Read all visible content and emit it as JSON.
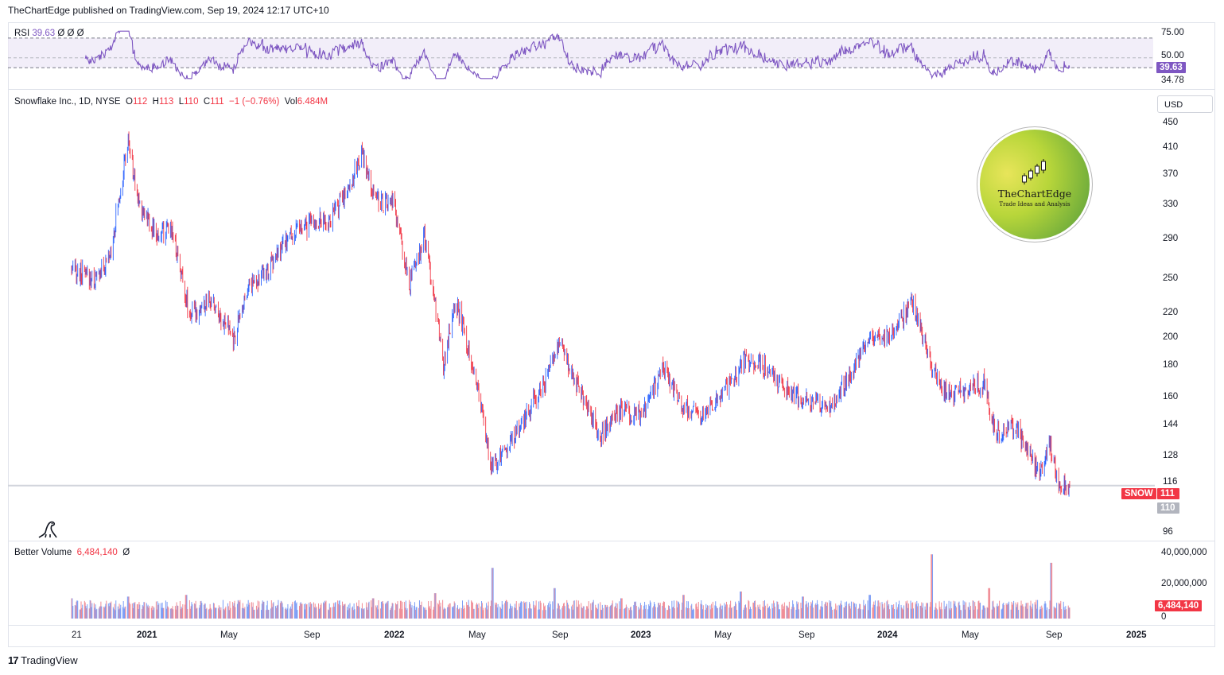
{
  "header": {
    "publisher_line": "TheChartEdge published on TradingView.com, Sep 19, 2024 12:17 UTC+10"
  },
  "rsi_pane": {
    "name": "RSI",
    "value": "39.63",
    "flags": [
      "Ø",
      "Ø",
      "Ø"
    ],
    "axis_labels": [
      "75.00",
      "50.00",
      "34.78"
    ],
    "current_tag": "39.63",
    "band": [
      40,
      70
    ],
    "range": [
      28,
      78
    ],
    "line_color": "#7e57c2",
    "band_color": "#ede7f6"
  },
  "price_pane": {
    "symbol_line": "Snowflake Inc., 1D, NYSE",
    "ohlc": {
      "o_label": "O",
      "o": "112",
      "h_label": "H",
      "h": "113",
      "l_label": "L",
      "l": "110",
      "c_label": "C",
      "c": "111",
      "change": "−1 (−0.76%)",
      "vol_label": "Vol",
      "vol": "6.484M"
    },
    "currency": "USD",
    "axis_labels": [
      "450",
      "410",
      "370",
      "330",
      "290",
      "250",
      "220",
      "200",
      "180",
      "160",
      "144",
      "128",
      "116",
      "96"
    ],
    "symbol_tag": "SNOW",
    "last_price_tag": "111",
    "low_price_tag": "110",
    "scale": "log",
    "up_color": "#2962ff",
    "down_color": "#f23645"
  },
  "watermark": {
    "title": "TheChartEdge",
    "subtitle": "Trade Ideas and Analysis"
  },
  "volume_pane": {
    "name": "Better Volume",
    "value": "6,484,140",
    "flag": "Ø",
    "axis_labels": [
      "40,000,000",
      "20,000,000",
      "0"
    ],
    "current_tag": "6,484,140"
  },
  "time_axis": {
    "labels": [
      "21",
      "2021",
      "May",
      "Sep",
      "2022",
      "May",
      "Sep",
      "2023",
      "May",
      "Sep",
      "2024",
      "May",
      "Sep",
      "2025"
    ]
  },
  "footer": {
    "brand": "TradingView"
  },
  "chart_data": {
    "type": "candlestick",
    "ticker": "SNOW",
    "interval": "1D",
    "exchange": "NYSE",
    "x_range": [
      "2020-09-16",
      "2025-01-01"
    ],
    "y_scale": "log",
    "ylim": [
      92,
      470
    ],
    "last_close": 111,
    "price_path": [
      {
        "date": "2020-09-16",
        "close": 253
      },
      {
        "date": "2020-09-30",
        "close": 251
      },
      {
        "date": "2020-10-20",
        "close": 245
      },
      {
        "date": "2020-11-10",
        "close": 265
      },
      {
        "date": "2020-12-08",
        "close": 420
      },
      {
        "date": "2020-12-22",
        "close": 335
      },
      {
        "date": "2021-01-20",
        "close": 290
      },
      {
        "date": "2021-02-10",
        "close": 300
      },
      {
        "date": "2021-03-08",
        "close": 215
      },
      {
        "date": "2021-04-10",
        "close": 225
      },
      {
        "date": "2021-05-12",
        "close": 195
      },
      {
        "date": "2021-06-01",
        "close": 240
      },
      {
        "date": "2021-07-01",
        "close": 255
      },
      {
        "date": "2021-08-01",
        "close": 290
      },
      {
        "date": "2021-09-01",
        "close": 305
      },
      {
        "date": "2021-10-01",
        "close": 310
      },
      {
        "date": "2021-11-01",
        "close": 360
      },
      {
        "date": "2021-11-15",
        "close": 400
      },
      {
        "date": "2021-12-01",
        "close": 345
      },
      {
        "date": "2021-12-15",
        "close": 330
      },
      {
        "date": "2022-01-01",
        "close": 330
      },
      {
        "date": "2022-01-24",
        "close": 240
      },
      {
        "date": "2022-02-15",
        "close": 290
      },
      {
        "date": "2022-03-01",
        "close": 235
      },
      {
        "date": "2022-03-15",
        "close": 175
      },
      {
        "date": "2022-04-01",
        "close": 230
      },
      {
        "date": "2022-05-01",
        "close": 170
      },
      {
        "date": "2022-05-24",
        "close": 120
      },
      {
        "date": "2022-06-15",
        "close": 128
      },
      {
        "date": "2022-07-15",
        "close": 145
      },
      {
        "date": "2022-08-15",
        "close": 170
      },
      {
        "date": "2022-09-01",
        "close": 195
      },
      {
        "date": "2022-10-01",
        "close": 160
      },
      {
        "date": "2022-11-01",
        "close": 135
      },
      {
        "date": "2022-12-01",
        "close": 148
      },
      {
        "date": "2023-01-01",
        "close": 145
      },
      {
        "date": "2023-02-01",
        "close": 175
      },
      {
        "date": "2023-03-01",
        "close": 150
      },
      {
        "date": "2023-04-01",
        "close": 145
      },
      {
        "date": "2023-05-01",
        "close": 160
      },
      {
        "date": "2023-06-01",
        "close": 180
      },
      {
        "date": "2023-07-01",
        "close": 175
      },
      {
        "date": "2023-08-01",
        "close": 160
      },
      {
        "date": "2023-09-01",
        "close": 155
      },
      {
        "date": "2023-10-01",
        "close": 150
      },
      {
        "date": "2023-11-01",
        "close": 170
      },
      {
        "date": "2023-12-01",
        "close": 195
      },
      {
        "date": "2024-01-01",
        "close": 200
      },
      {
        "date": "2024-02-01",
        "close": 225
      },
      {
        "date": "2024-02-28",
        "close": 175
      },
      {
        "date": "2024-03-15",
        "close": 160
      },
      {
        "date": "2024-04-01",
        "close": 158
      },
      {
        "date": "2024-05-15",
        "close": 165
      },
      {
        "date": "2024-06-01",
        "close": 135
      },
      {
        "date": "2024-07-01",
        "close": 140
      },
      {
        "date": "2024-08-05",
        "close": 115
      },
      {
        "date": "2024-08-20",
        "close": 130
      },
      {
        "date": "2024-09-01",
        "close": 113
      },
      {
        "date": "2024-09-18",
        "close": 111
      }
    ],
    "volume_path": [
      {
        "date": "2020-09-16",
        "volume": 12000000
      },
      {
        "date": "2020-12-08",
        "volume": 13000000
      },
      {
        "date": "2021-03-03",
        "volume": 14000000
      },
      {
        "date": "2021-12-02",
        "volume": 12000000
      },
      {
        "date": "2022-03-03",
        "volume": 15000000
      },
      {
        "date": "2022-05-26",
        "volume": 30000000
      },
      {
        "date": "2022-08-25",
        "volume": 18000000
      },
      {
        "date": "2022-12-01",
        "volume": 12000000
      },
      {
        "date": "2023-03-02",
        "volume": 14000000
      },
      {
        "date": "2023-05-25",
        "volume": 16000000
      },
      {
        "date": "2023-08-24",
        "volume": 13000000
      },
      {
        "date": "2023-11-30",
        "volume": 14000000
      },
      {
        "date": "2024-02-29",
        "volume": 38000000
      },
      {
        "date": "2024-05-23",
        "volume": 18000000
      },
      {
        "date": "2024-08-22",
        "volume": 33000000
      },
      {
        "date": "2024-09-18",
        "volume": 6484140
      }
    ]
  }
}
